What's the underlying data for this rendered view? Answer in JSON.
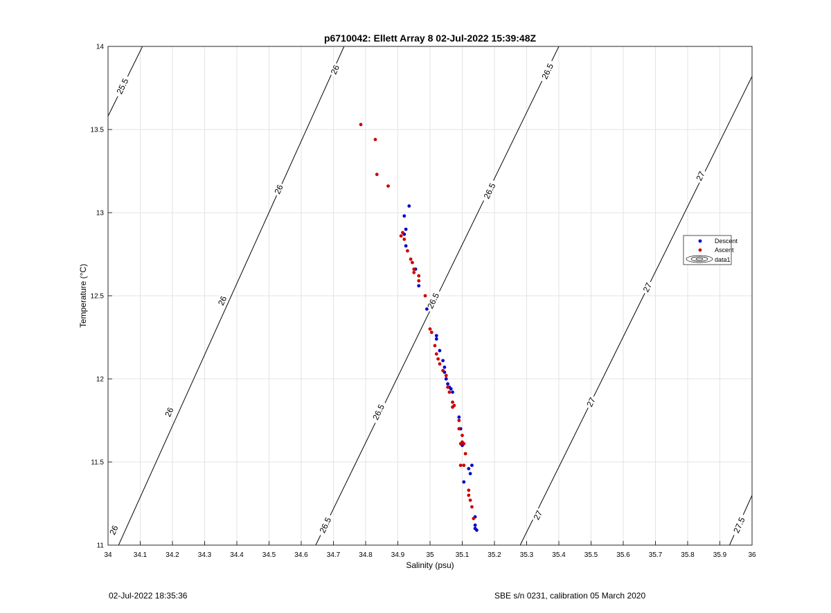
{
  "chart_data": {
    "type": "scatter",
    "title": "p6710042: Ellett Array 8 02-Jul-2022 15:39:48Z",
    "xlabel": "Salinity (psu)",
    "ylabel": "Temperature (°C)",
    "xlim": [
      34,
      36
    ],
    "ylim": [
      11,
      14
    ],
    "xticks": [
      "34",
      "34.1",
      "34.2",
      "34.3",
      "34.4",
      "34.5",
      "34.6",
      "34.7",
      "34.8",
      "34.9",
      "35",
      "35.1",
      "35.2",
      "35.3",
      "35.4",
      "35.5",
      "35.6",
      "35.7",
      "35.8",
      "35.9",
      "36"
    ],
    "yticks": [
      "11",
      "11.5",
      "12",
      "12.5",
      "13",
      "13.5",
      "14"
    ],
    "grid": true,
    "legend_position": "right",
    "legend": [
      {
        "label": "Descent",
        "color": "#0000cc",
        "kind": "marker"
      },
      {
        "label": "Ascent",
        "color": "#cc0000",
        "kind": "marker"
      },
      {
        "label": "data1",
        "color": "#000000",
        "kind": "contour"
      }
    ],
    "contours": [
      {
        "level": "25.5",
        "points": [
          [
            34.0,
            13.58
          ],
          [
            34.107,
            14.0
          ]
        ],
        "labels": [
          {
            "text": "25.5",
            "at": [
              34.045,
              13.76
            ]
          }
        ]
      },
      {
        "level": "26",
        "points": [
          [
            34.0,
            10.86
          ],
          [
            34.733,
            14.0
          ]
        ],
        "labels": [
          {
            "text": "26",
            "at": [
              34.018,
              11.09
            ]
          },
          {
            "text": "26",
            "at": [
              34.19,
              11.8
            ]
          },
          {
            "text": "26",
            "at": [
              34.355,
              12.47
            ]
          },
          {
            "text": "26",
            "at": [
              34.53,
              13.14
            ]
          },
          {
            "text": "26",
            "at": [
              34.705,
              13.86
            ]
          }
        ]
      },
      {
        "level": "26.5",
        "points": [
          [
            34.645,
            11.0
          ],
          [
            35.4,
            14.0
          ]
        ],
        "labels": [
          {
            "text": "26.5",
            "at": [
              34.675,
              11.12
            ]
          },
          {
            "text": "26.5",
            "at": [
              34.84,
              11.8
            ]
          },
          {
            "text": "26.5",
            "at": [
              35.01,
              12.47
            ]
          },
          {
            "text": "26.5",
            "at": [
              35.185,
              13.13
            ]
          },
          {
            "text": "26.5",
            "at": [
              35.365,
              13.85
            ]
          }
        ]
      },
      {
        "level": "27",
        "points": [
          [
            35.28,
            11.0
          ],
          [
            36.0,
            13.82
          ]
        ],
        "labels": [
          {
            "text": "27",
            "at": [
              35.335,
              11.18
            ]
          },
          {
            "text": "27",
            "at": [
              35.5,
              11.86
            ]
          },
          {
            "text": "27",
            "at": [
              35.675,
              12.55
            ]
          },
          {
            "text": "27",
            "at": [
              35.84,
              13.22
            ]
          }
        ]
      },
      {
        "level": "27.5",
        "points": [
          [
            35.93,
            11.0
          ],
          [
            36.0,
            11.3
          ]
        ],
        "labels": [
          {
            "text": "27.5",
            "at": [
              35.96,
              11.12
            ]
          }
        ]
      }
    ],
    "series": [
      {
        "name": "Descent",
        "color": "#0000cc",
        "points": [
          [
            34.935,
            13.04
          ],
          [
            34.92,
            12.98
          ],
          [
            34.925,
            12.9
          ],
          [
            34.92,
            12.87
          ],
          [
            34.925,
            12.8
          ],
          [
            34.955,
            12.66
          ],
          [
            34.965,
            12.56
          ],
          [
            34.99,
            12.42
          ],
          [
            35.02,
            12.26
          ],
          [
            35.02,
            12.24
          ],
          [
            35.03,
            12.17
          ],
          [
            35.04,
            12.11
          ],
          [
            35.045,
            12.07
          ],
          [
            35.045,
            12.04
          ],
          [
            35.05,
            12.0
          ],
          [
            35.055,
            11.97
          ],
          [
            35.06,
            11.95
          ],
          [
            35.065,
            11.94
          ],
          [
            35.07,
            11.92
          ],
          [
            35.09,
            11.77
          ],
          [
            35.095,
            11.7
          ],
          [
            35.1,
            11.6
          ],
          [
            35.105,
            11.38
          ],
          [
            35.125,
            11.43
          ],
          [
            35.13,
            11.48
          ],
          [
            35.12,
            11.46
          ],
          [
            35.14,
            11.17
          ],
          [
            35.14,
            11.12
          ],
          [
            35.14,
            11.1
          ],
          [
            35.145,
            11.09
          ]
        ]
      },
      {
        "name": "Ascent",
        "color": "#cc0000",
        "points": [
          [
            34.785,
            13.53
          ],
          [
            34.83,
            13.44
          ],
          [
            34.835,
            13.23
          ],
          [
            34.87,
            13.16
          ],
          [
            34.915,
            12.88
          ],
          [
            34.91,
            12.86
          ],
          [
            34.92,
            12.84
          ],
          [
            34.93,
            12.77
          ],
          [
            34.94,
            12.72
          ],
          [
            34.945,
            12.7
          ],
          [
            34.95,
            12.66
          ],
          [
            34.95,
            12.64
          ],
          [
            34.965,
            12.62
          ],
          [
            34.965,
            12.59
          ],
          [
            34.985,
            12.5
          ],
          [
            35.0,
            12.3
          ],
          [
            35.005,
            12.28
          ],
          [
            35.015,
            12.2
          ],
          [
            35.02,
            12.15
          ],
          [
            35.025,
            12.12
          ],
          [
            35.03,
            12.09
          ],
          [
            35.04,
            12.05
          ],
          [
            35.05,
            12.02
          ],
          [
            35.055,
            11.95
          ],
          [
            35.06,
            11.92
          ],
          [
            35.07,
            11.86
          ],
          [
            35.075,
            11.84
          ],
          [
            35.07,
            11.83
          ],
          [
            35.09,
            11.75
          ],
          [
            35.09,
            11.7
          ],
          [
            35.1,
            11.66
          ],
          [
            35.1,
            11.62
          ],
          [
            35.095,
            11.61
          ],
          [
            35.105,
            11.61
          ],
          [
            35.11,
            11.55
          ],
          [
            35.095,
            11.48
          ],
          [
            35.105,
            11.48
          ],
          [
            35.12,
            11.33
          ],
          [
            35.12,
            11.3
          ],
          [
            35.125,
            11.27
          ],
          [
            35.13,
            11.23
          ],
          [
            35.135,
            11.16
          ]
        ]
      }
    ]
  },
  "footer": {
    "left": "02-Jul-2022 18:35:36",
    "right": "SBE s/n 0231, calibration 05 March 2020"
  }
}
